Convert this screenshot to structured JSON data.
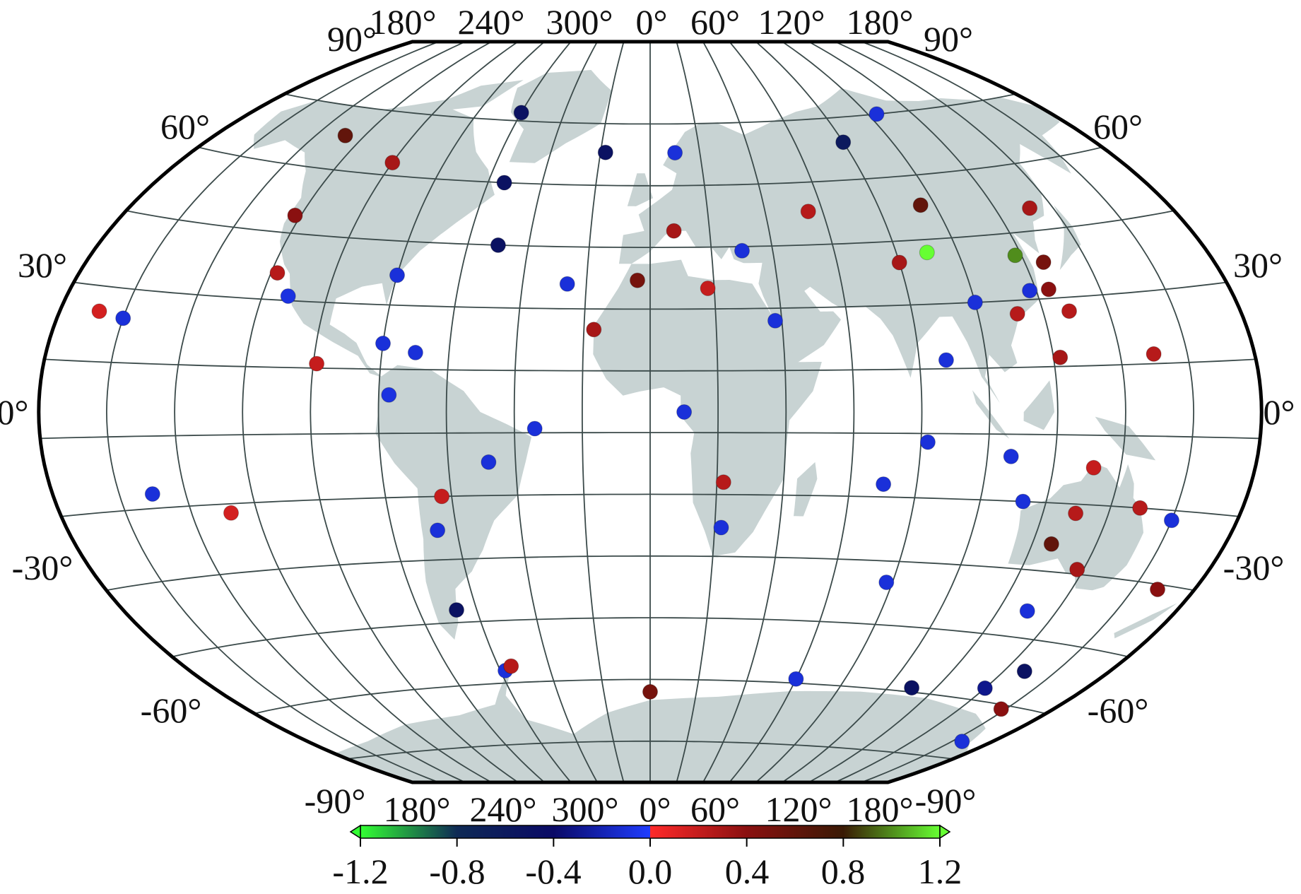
{
  "map": {
    "projection": "Winkel-Tripel-like world map",
    "top_lon_labels": [
      "180°",
      "240°",
      "300°",
      "0°",
      "60°",
      "120°",
      "180°"
    ],
    "bottom_lon_labels": [
      "180°",
      "240°",
      "300°",
      "0°",
      "60°",
      "120°",
      "180°"
    ],
    "lat_labels_left": [
      "90°",
      "60°",
      "30°",
      "0°",
      "-30°",
      "-60°",
      "-90°"
    ],
    "lat_labels_right": [
      "90°",
      "60°",
      "30°",
      "0°",
      "-30°",
      "-60°",
      "-90°"
    ],
    "colors": {
      "land": "#c8d3d3",
      "grid": "#3b4a4a",
      "border": "#000000"
    }
  },
  "colorbar": {
    "tick_labels": [
      "-1.2",
      "-0.8",
      "-0.4",
      "0.0",
      "0.4",
      "0.8",
      "1.2"
    ],
    "min": -1.2,
    "max": 1.2,
    "stops": [
      {
        "v": -1.2,
        "c": "#33ff33"
      },
      {
        "v": -0.8,
        "c": "#0f2a55"
      },
      {
        "v": -0.4,
        "c": "#0a0a66"
      },
      {
        "v": 0.0,
        "c": "#1f3cff"
      },
      {
        "v": 0.0,
        "c": "#ff2a2a"
      },
      {
        "v": 0.4,
        "c": "#8a1010"
      },
      {
        "v": 0.8,
        "c": "#3a1a05"
      },
      {
        "v": 1.2,
        "c": "#66ff33"
      }
    ]
  },
  "stations": [
    {
      "lon": -168,
      "lat": 20,
      "value": 0.15
    },
    {
      "lon": -160,
      "lat": 19,
      "value": -0.1
    },
    {
      "lon": -150,
      "lat": -17,
      "value": -0.1
    },
    {
      "lon": -128,
      "lat": 63,
      "value": 0.6
    },
    {
      "lon": -122,
      "lat": 44,
      "value": 0.4
    },
    {
      "lon": -118,
      "lat": 31,
      "value": 0.25
    },
    {
      "lon": -112,
      "lat": 26,
      "value": -0.08
    },
    {
      "lon": -99,
      "lat": 11,
      "value": 0.2
    },
    {
      "lon": -100,
      "lat": 58,
      "value": 0.3
    },
    {
      "lon": -128,
      "lat": -22,
      "value": 0.15
    },
    {
      "lon": -80,
      "lat": 32,
      "value": -0.1
    },
    {
      "lon": -80,
      "lat": 16,
      "value": -0.1
    },
    {
      "lon": -70,
      "lat": 14,
      "value": -0.1
    },
    {
      "lon": -77,
      "lat": 4,
      "value": -0.08
    },
    {
      "lon": -60,
      "lat": 72,
      "value": -0.5
    },
    {
      "lon": -54,
      "lat": 55,
      "value": -0.5
    },
    {
      "lon": -50,
      "lat": 40,
      "value": -0.5
    },
    {
      "lon": -34,
      "lat": -4,
      "value": -0.1
    },
    {
      "lon": -48,
      "lat": -12,
      "value": -0.1
    },
    {
      "lon": -63,
      "lat": -20,
      "value": 0.2
    },
    {
      "lon": -66,
      "lat": -28,
      "value": -0.1
    },
    {
      "lon": -67,
      "lat": -47,
      "value": -0.5
    },
    {
      "lon": -58,
      "lat": -62,
      "value": -0.1
    },
    {
      "lon": -55,
      "lat": -61,
      "value": 0.25
    },
    {
      "lon": -18,
      "lat": 63,
      "value": -0.5
    },
    {
      "lon": -26,
      "lat": 31,
      "value": -0.1
    },
    {
      "lon": -17,
      "lat": 20,
      "value": 0.3
    },
    {
      "lon": -4,
      "lat": 32,
      "value": 0.5
    },
    {
      "lon": 10,
      "lat": 63,
      "value": -0.1
    },
    {
      "lon": 8,
      "lat": 44,
      "value": 0.3
    },
    {
      "lon": 18,
      "lat": 30,
      "value": 0.2
    },
    {
      "lon": 10,
      "lat": 0,
      "value": -0.1
    },
    {
      "lon": 30,
      "lat": 39,
      "value": -0.1
    },
    {
      "lon": 38,
      "lat": 22,
      "value": -0.1
    },
    {
      "lon": 22,
      "lat": -17,
      "value": 0.25
    },
    {
      "lon": 22,
      "lat": -28,
      "value": -0.1
    },
    {
      "lon": 55,
      "lat": 48,
      "value": 0.25
    },
    {
      "lon": 80,
      "lat": 64,
      "value": -0.6
    },
    {
      "lon": 70,
      "lat": -17,
      "value": -0.1
    },
    {
      "lon": 78,
      "lat": -40,
      "value": -0.1
    },
    {
      "lon": 80,
      "lat": 35,
      "value": 0.3
    },
    {
      "lon": 90,
      "lat": 37,
      "value": 1.2
    },
    {
      "lon": 95,
      "lat": 48,
      "value": 0.6
    },
    {
      "lon": 104,
      "lat": 70,
      "value": -0.1
    },
    {
      "lon": 100,
      "lat": 25,
      "value": -0.1
    },
    {
      "lon": 88,
      "lat": 12,
      "value": -0.1
    },
    {
      "lon": 82,
      "lat": -7,
      "value": -0.1
    },
    {
      "lon": 112,
      "lat": 22,
      "value": 0.25
    },
    {
      "lon": 118,
      "lat": 35,
      "value": 1.0
    },
    {
      "lon": 118,
      "lat": 27,
      "value": -0.1
    },
    {
      "lon": 126,
      "lat": 33,
      "value": 0.5
    },
    {
      "lon": 124,
      "lat": 27,
      "value": 0.4
    },
    {
      "lon": 128,
      "lat": 22,
      "value": 0.25
    },
    {
      "lon": 132,
      "lat": 45,
      "value": 0.3
    },
    {
      "lon": 122,
      "lat": 12,
      "value": 0.3
    },
    {
      "lon": 107,
      "lat": -10,
      "value": -0.1
    },
    {
      "lon": 113,
      "lat": -20,
      "value": -0.1
    },
    {
      "lon": 132,
      "lat": -12,
      "value": 0.2
    },
    {
      "lon": 130,
      "lat": -22,
      "value": 0.25
    },
    {
      "lon": 150,
      "lat": 12,
      "value": 0.25
    },
    {
      "lon": 149,
      "lat": -20,
      "value": 0.25
    },
    {
      "lon": 126,
      "lat": -29,
      "value": 0.6
    },
    {
      "lon": 138,
      "lat": -34,
      "value": 0.3
    },
    {
      "lon": 160,
      "lat": -22,
      "value": -0.1
    },
    {
      "lon": 168,
      "lat": -36,
      "value": 0.4
    },
    {
      "lon": 130,
      "lat": -44,
      "value": -0.1
    },
    {
      "lon": 148,
      "lat": -57,
      "value": -0.5
    },
    {
      "lon": 60,
      "lat": -64,
      "value": -0.1
    },
    {
      "lon": 0,
      "lat": -68,
      "value": 0.5
    },
    {
      "lon": 110,
      "lat": -64,
      "value": -0.5
    },
    {
      "lon": 140,
      "lat": -62,
      "value": -0.3
    },
    {
      "lon": 158,
      "lat": -66,
      "value": 0.4
    },
    {
      "lon": 165,
      "lat": -75,
      "value": -0.1
    }
  ]
}
